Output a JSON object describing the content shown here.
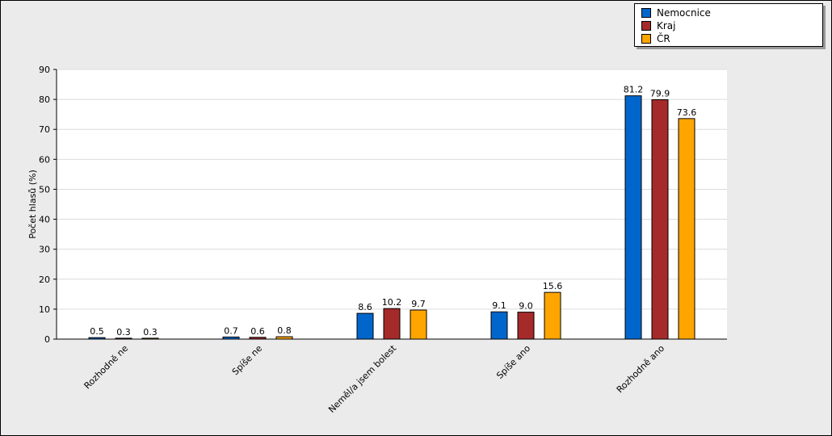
{
  "chart_data": {
    "type": "bar",
    "ylabel": "Počet hlasů (%)",
    "ylim": [
      0,
      90
    ],
    "yticks": [
      0,
      10,
      20,
      30,
      40,
      50,
      60,
      70,
      80,
      90
    ],
    "categories": [
      "Rozhodně ne",
      "Spíše ne",
      "Neměl/a jsem bolest",
      "Spíše ano",
      "Rozhodně ano"
    ],
    "series": [
      {
        "name": "Nemocnice",
        "color": "#0066cc",
        "values": [
          0.5,
          0.7,
          8.6,
          9.1,
          81.2
        ]
      },
      {
        "name": "Kraj",
        "color": "#a52a2a",
        "values": [
          0.3,
          0.6,
          10.2,
          9.0,
          79.9
        ]
      },
      {
        "name": "ČR",
        "color": "#ffa500",
        "values": [
          0.3,
          0.8,
          9.7,
          15.6,
          73.6
        ]
      }
    ],
    "value_labels": [
      [
        "0.5",
        "0.7",
        "8.6",
        "9.1",
        "81.2"
      ],
      [
        "0.3",
        "0.6",
        "10.2",
        "9.0",
        "79.9"
      ],
      [
        "0.3",
        "0.8",
        "9.7",
        "15.6",
        "73.6"
      ]
    ],
    "grid": true,
    "legend_position": "top-right"
  }
}
